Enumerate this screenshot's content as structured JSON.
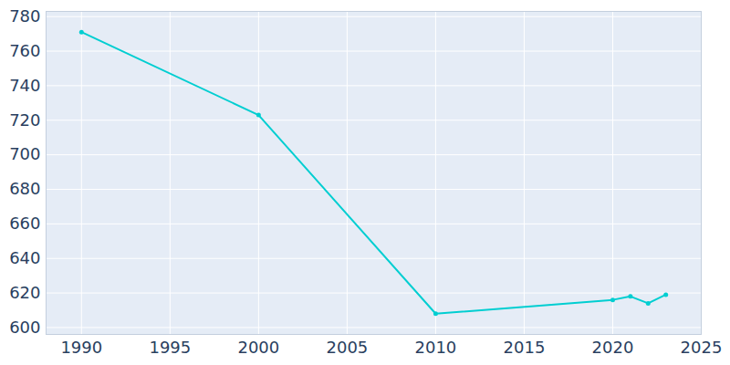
{
  "chart_data": {
    "type": "line",
    "x": [
      1990,
      2000,
      2010,
      2020,
      2021,
      2022,
      2023
    ],
    "values": [
      771,
      723,
      608,
      616,
      618,
      614,
      619
    ],
    "color": "#00ced1",
    "marker": "circle",
    "xlim": [
      1988,
      2025
    ],
    "xticks": [
      1990,
      1995,
      2000,
      2005,
      2010,
      2015,
      2020,
      2025
    ],
    "ylim": [
      596,
      783
    ],
    "yticks": [
      600,
      620,
      640,
      660,
      680,
      700,
      720,
      740,
      760,
      780
    ],
    "grid": true
  }
}
